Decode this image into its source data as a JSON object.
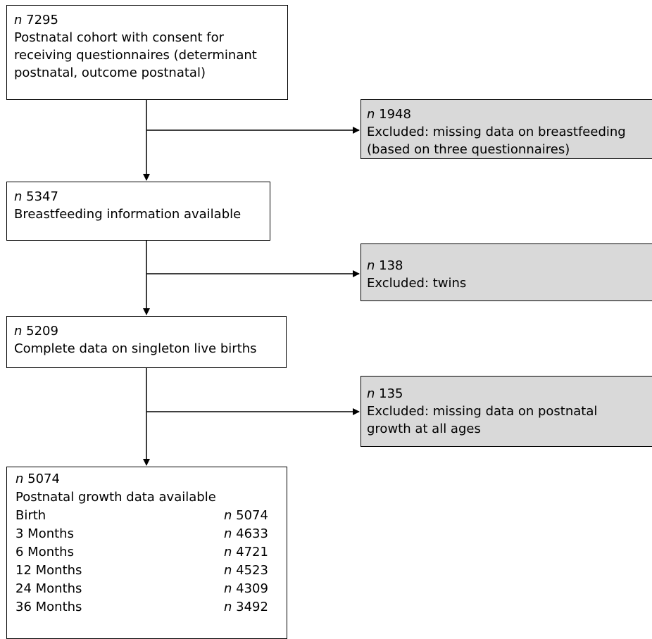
{
  "n_label": "n",
  "main_boxes": [
    {
      "count": "7295",
      "lines": [
        "Postnatal cohort with consent for",
        "receiving questionnaires (determinant",
        "postnatal, outcome postnatal)"
      ]
    },
    {
      "count": "5347",
      "lines": [
        "Breastfeeding information available"
      ]
    },
    {
      "count": "5209",
      "lines": [
        "Complete data on singleton live births"
      ]
    },
    {
      "count": "5074",
      "lines": [
        "Postnatal growth data available"
      ]
    }
  ],
  "excluded_boxes": [
    {
      "count": "1948",
      "lines": [
        "Excluded: missing data on breastfeeding",
        "(based on three questionnaires)"
      ]
    },
    {
      "count": "138",
      "lines": [
        "Excluded: twins"
      ]
    },
    {
      "count": "135",
      "lines": [
        "Excluded: missing data on postnatal",
        "growth at all ages"
      ]
    }
  ],
  "growth_rows": [
    {
      "age": "Birth",
      "count": "5074"
    },
    {
      "age": "3 Months",
      "count": "4633"
    },
    {
      "age": "6 Months",
      "count": "4721"
    },
    {
      "age": "12 Months",
      "count": "4523"
    },
    {
      "age": "24 Months",
      "count": "4309"
    },
    {
      "age": "36 Months",
      "count": "3492"
    }
  ],
  "colors": {
    "excluded_fill": "#d9d9d9",
    "border": "#000000",
    "background": "#ffffff"
  }
}
